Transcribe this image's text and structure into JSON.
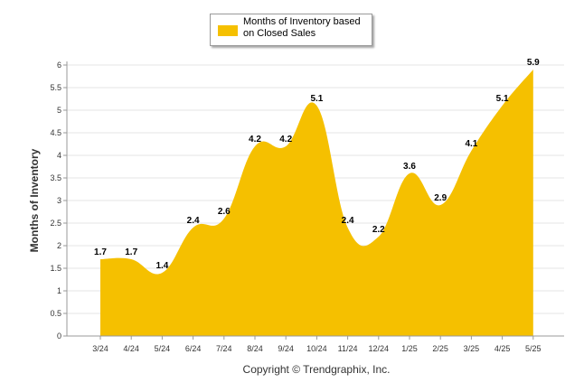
{
  "chart_data": {
    "type": "area",
    "categories": [
      "3/24",
      "4/24",
      "5/24",
      "6/24",
      "7/24",
      "8/24",
      "9/24",
      "10/24",
      "11/24",
      "12/24",
      "1/25",
      "2/25",
      "3/25",
      "4/25",
      "5/25"
    ],
    "series": [
      {
        "name": "Months of Inventory based on Closed Sales",
        "values": [
          1.7,
          1.7,
          1.4,
          2.4,
          2.6,
          4.2,
          4.2,
          5.1,
          2.4,
          2.2,
          3.6,
          2.9,
          4.1,
          5.1,
          5.9
        ]
      }
    ],
    "data_labels": [
      "1.7",
      "1.7",
      "1.4",
      "2.4",
      "2.6",
      "4.2",
      "4.2",
      "5.1",
      "2.4",
      "2.2",
      "3.6",
      "2.9",
      "4.1",
      "5.1",
      "5.9"
    ],
    "ylabel": "Months of Inventory",
    "xlabel": "",
    "ylim": [
      0,
      6
    ],
    "yticks": [
      0,
      0.5,
      1,
      1.5,
      2,
      2.5,
      3,
      3.5,
      4,
      4.5,
      5,
      5.5,
      6
    ],
    "ytick_labels": [
      "0",
      "0.5",
      "1",
      "1.5",
      "2",
      "2.5",
      "3",
      "3.5",
      "4",
      "4.5",
      "5",
      "5.5",
      "6"
    ],
    "grid": true,
    "legend_position": "top-center",
    "color": "#F5C000"
  },
  "legend": {
    "label": "Months of Inventory based on Closed Sales"
  },
  "footer": {
    "copyright": "Copyright © Trendgraphix, Inc."
  }
}
